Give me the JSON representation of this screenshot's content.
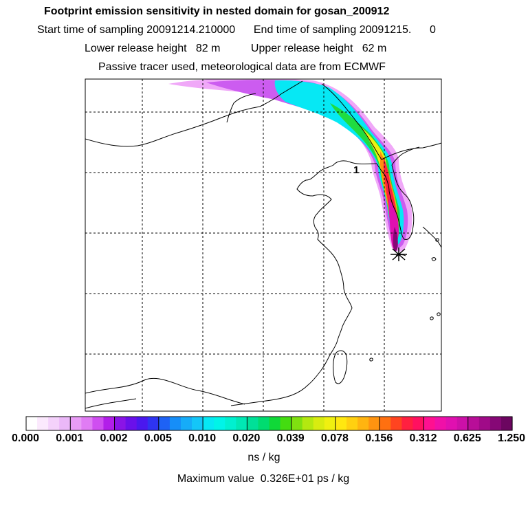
{
  "header": {
    "title": "Footprint emission sensitivity in nested domain for gosan_200912",
    "sampling_line": "Start time of sampling 20091214.210000      End time of sampling 20091215.      0",
    "release_line": "Lower release height   82 m          Upper release height   62 m",
    "tracer_line": "Passive tracer used, meteorological data are from ECMWF"
  },
  "map": {
    "station_marker": "asterisk-marker",
    "trajectory_label": "1"
  },
  "colorbar": {
    "tick_labels": [
      "0.000",
      "0.001",
      "0.002",
      "0.005",
      "0.010",
      "0.020",
      "0.039",
      "0.078",
      "0.156",
      "0.312",
      "0.625",
      "1.250"
    ],
    "colors": [
      "#ffffff",
      "#fbe9fd",
      "#f4d2fb",
      "#ebb8f8",
      "#e99cf6",
      "#e07cf4",
      "#cf4ef0",
      "#b21ee9",
      "#8a14e6",
      "#6a10ea",
      "#4a18ee",
      "#2e34f2",
      "#1e62f5",
      "#168ef8",
      "#16acf8",
      "#14c6f8",
      "#06e8f4",
      "#00f4e8",
      "#00f0d0",
      "#00e8b4",
      "#00e098",
      "#00dc70",
      "#10d838",
      "#44dc10",
      "#80e010",
      "#b4e810",
      "#d8ec10",
      "#f0f010",
      "#ffe810",
      "#ffd010",
      "#ffb410",
      "#ff9410",
      "#ff7010",
      "#ff4420",
      "#ff2040",
      "#ff1060",
      "#ff1090",
      "#f010a8",
      "#e010b0",
      "#cc10a8",
      "#b80e98",
      "#a00a88",
      "#860876",
      "#6c0660"
    ],
    "unit": "ns / kg"
  },
  "footer": {
    "maximum_value": "Maximum value  0.326E+01 ps / kg"
  }
}
